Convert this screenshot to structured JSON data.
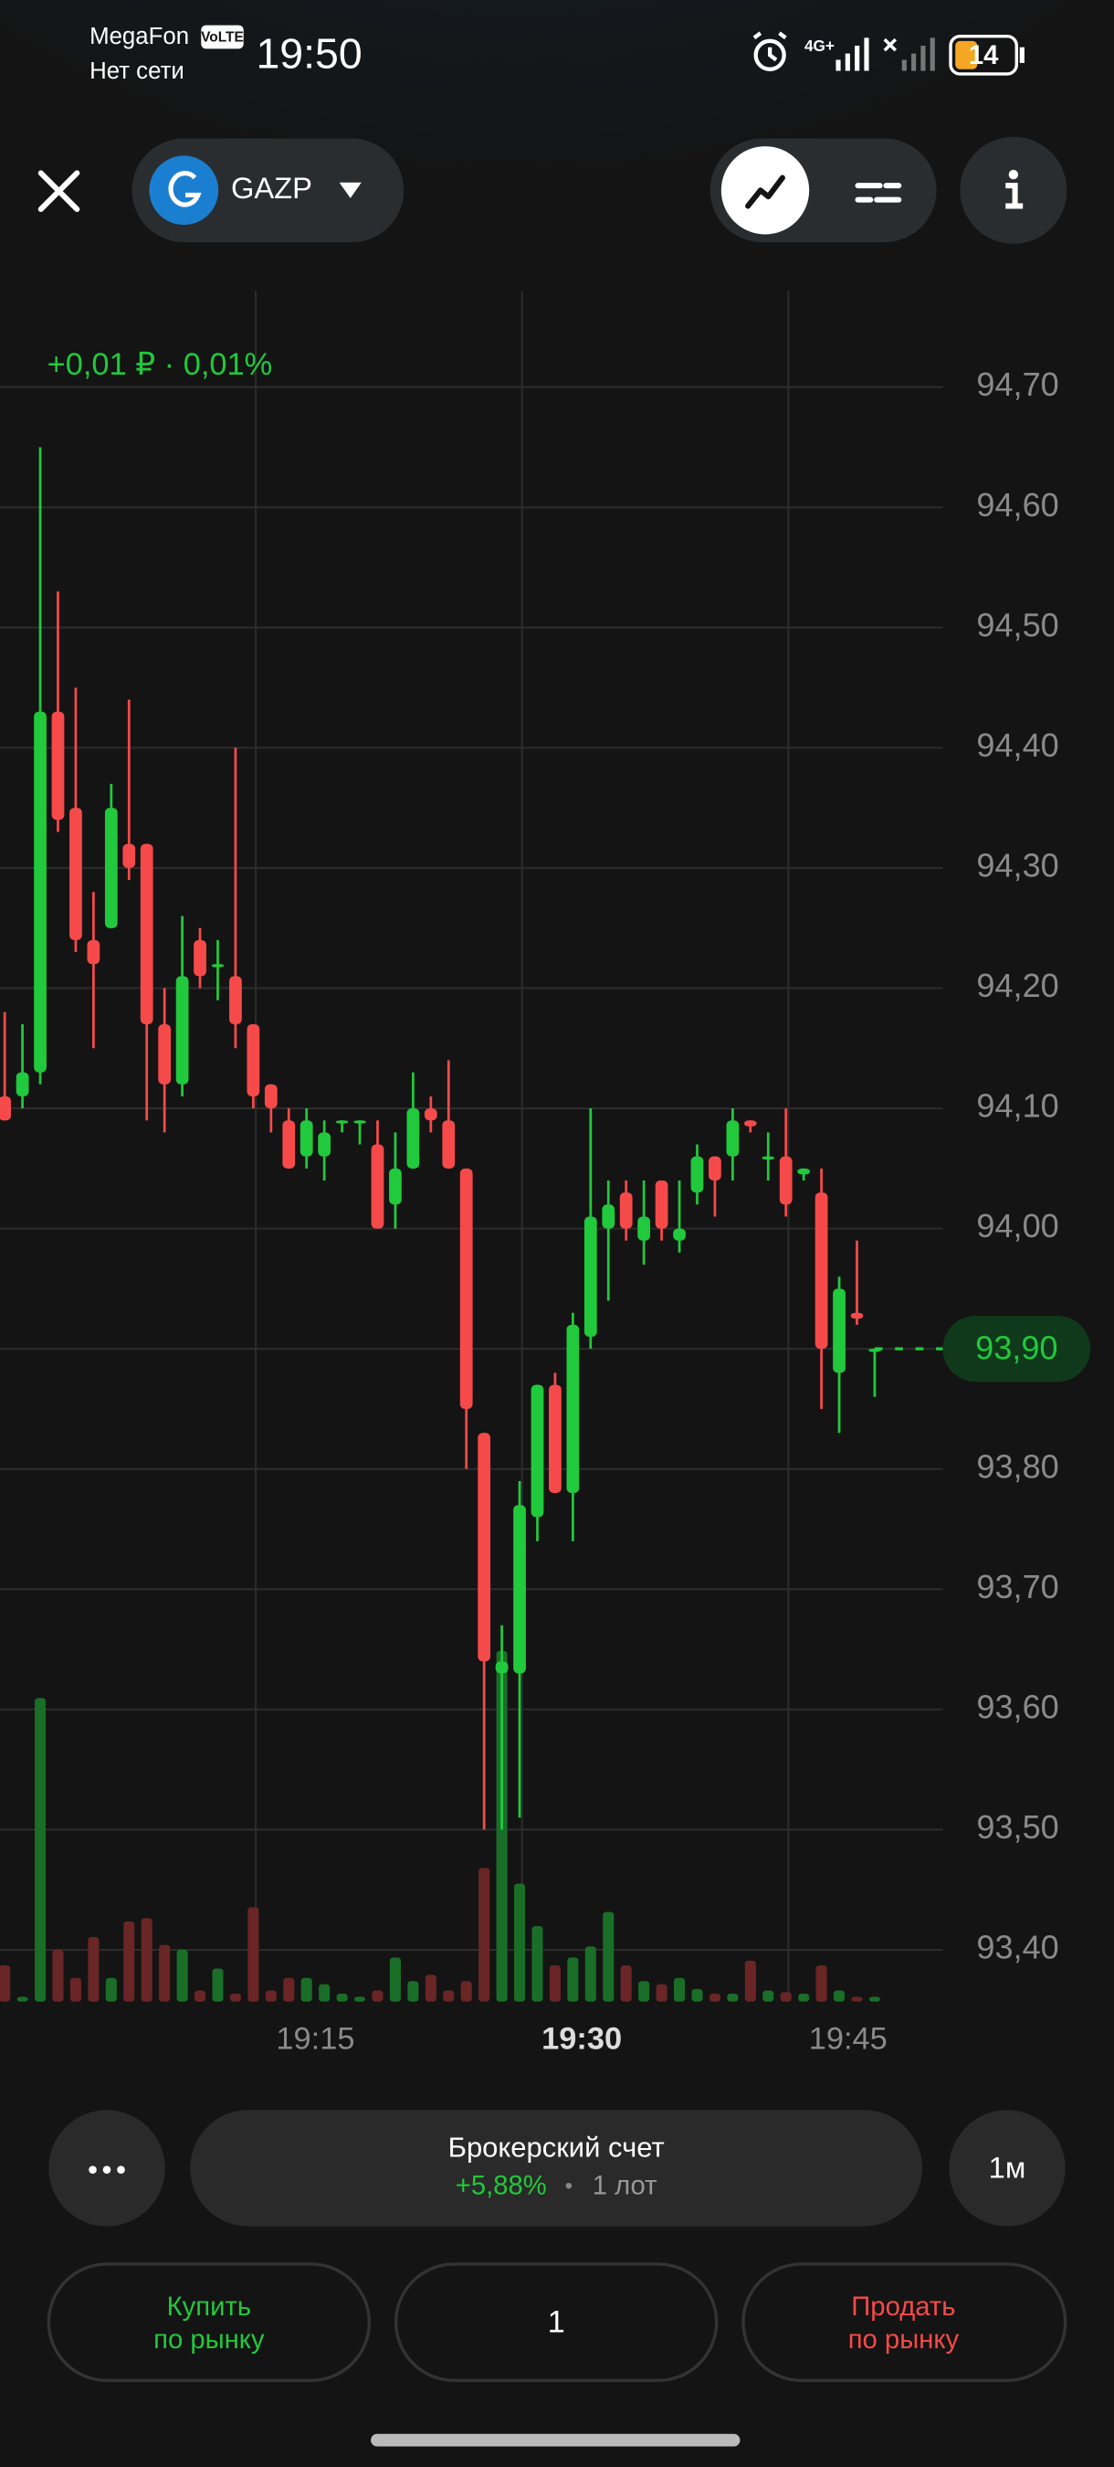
{
  "status_bar": {
    "carrier": "MegaFon",
    "volte": "VoLTE",
    "network": "Нет сети",
    "time": "19:50",
    "signal": "4G+",
    "battery": "14"
  },
  "header": {
    "ticker": "GAZP"
  },
  "chart_data": {
    "type": "candlestick",
    "change": "+0,01 ₽ · 0,01%",
    "categories": [
      null,
      null,
      null,
      null,
      null,
      null,
      null,
      null,
      null,
      null,
      null,
      null,
      null,
      null,
      null,
      null,
      null,
      "19:15",
      null,
      null,
      null,
      null,
      null,
      null,
      null,
      null,
      null,
      null,
      null,
      null,
      null,
      null,
      "19:30",
      null,
      null,
      null,
      null,
      null,
      null,
      null,
      null,
      null,
      null,
      null,
      null,
      null,
      null,
      "19:45",
      null,
      null
    ],
    "open": [
      94.11,
      94.11,
      94.13,
      94.43,
      94.35,
      94.24,
      94.25,
      94.32,
      94.32,
      94.17,
      94.12,
      94.24,
      94.22,
      94.21,
      94.17,
      94.12,
      94.09,
      94.06,
      94.06,
      94.09,
      94.09,
      94.07,
      94.02,
      94.05,
      94.1,
      94.09,
      94.05,
      93.83,
      93.63,
      93.63,
      93.76,
      93.87,
      93.78,
      93.91,
      94.0,
      94.03,
      93.99,
      94.04,
      93.99,
      94.03,
      94.06,
      94.06,
      94.09,
      94.06,
      94.06,
      94.045,
      94.03,
      93.88,
      93.93,
      93.9
    ],
    "high": [
      94.18,
      94.17,
      94.65,
      94.53,
      94.45,
      94.28,
      94.37,
      94.44,
      94.32,
      94.2,
      94.26,
      94.25,
      94.24,
      94.4,
      94.17,
      94.12,
      94.1,
      94.1,
      94.09,
      94.09,
      94.09,
      94.09,
      94.08,
      94.13,
      94.11,
      94.14,
      94.05,
      93.83,
      93.67,
      93.79,
      93.87,
      93.88,
      93.93,
      94.1,
      94.04,
      94.04,
      94.04,
      94.04,
      94.04,
      94.07,
      94.06,
      94.1,
      94.09,
      94.08,
      94.1,
      94.05,
      94.05,
      93.96,
      93.99,
      93.9
    ],
    "low": [
      94.09,
      94.1,
      94.12,
      94.33,
      94.23,
      94.15,
      94.25,
      94.29,
      94.09,
      94.08,
      94.11,
      94.2,
      94.19,
      94.15,
      94.1,
      94.08,
      94.05,
      94.05,
      94.04,
      94.08,
      94.07,
      94.0,
      94.0,
      94.05,
      94.08,
      94.05,
      93.8,
      93.5,
      93.5,
      93.51,
      93.74,
      93.78,
      93.74,
      93.9,
      93.94,
      93.99,
      93.97,
      93.99,
      93.98,
      94.02,
      94.01,
      94.04,
      94.08,
      94.04,
      94.01,
      94.04,
      93.85,
      93.83,
      93.92,
      93.86
    ],
    "close": [
      94.09,
      94.13,
      94.43,
      94.34,
      94.24,
      94.22,
      94.35,
      94.3,
      94.17,
      94.12,
      94.21,
      94.21,
      94.22,
      94.17,
      94.11,
      94.1,
      94.05,
      94.09,
      94.08,
      94.09,
      94.09,
      94.0,
      94.05,
      94.1,
      94.09,
      94.05,
      93.85,
      93.64,
      93.64,
      93.77,
      93.87,
      93.78,
      93.92,
      94.01,
      94.02,
      94.0,
      94.01,
      94.0,
      94.0,
      94.06,
      94.04,
      94.09,
      94.085,
      94.06,
      94.02,
      94.05,
      93.9,
      93.95,
      93.925,
      93.9
    ],
    "volume": [
      23,
      3,
      193,
      33,
      15,
      41,
      15,
      51,
      53,
      36,
      33,
      7,
      21,
      5,
      60,
      7,
      15,
      15,
      11,
      5,
      3,
      7,
      28,
      13,
      17,
      7,
      13,
      85,
      223,
      75,
      48,
      23,
      28,
      35,
      57,
      23,
      13,
      11,
      15,
      8,
      5,
      5,
      26,
      7,
      6,
      5,
      23,
      7,
      3,
      3
    ],
    "up_color": "#21c93c",
    "down_color": "#f64a4a",
    "up_volume_color": "#1a6e28",
    "down_volume_color": "#6a2626",
    "ylim": [
      93.357,
      94.78
    ],
    "yticks": [
      {
        "value": 94.7,
        "label": "94,70"
      },
      {
        "value": 94.6,
        "label": "94,60"
      },
      {
        "value": 94.5,
        "label": "94,50"
      },
      {
        "value": 94.4,
        "label": "94,40"
      },
      {
        "value": 94.3,
        "label": "94,30"
      },
      {
        "value": 94.2,
        "label": "94,20"
      },
      {
        "value": 94.1,
        "label": "94,10"
      },
      {
        "value": 94.0,
        "label": "94,00"
      },
      {
        "value": 93.9,
        "label": "93,90"
      },
      {
        "value": 93.8,
        "label": "93,80"
      },
      {
        "value": 93.7,
        "label": "93,70"
      },
      {
        "value": 93.6,
        "label": "93,60"
      },
      {
        "value": 93.5,
        "label": "93,50"
      },
      {
        "value": 93.4,
        "label": "93,40"
      }
    ],
    "grid": true,
    "last_price": {
      "value": 93.9,
      "label": "93,90"
    }
  },
  "account": {
    "name": "Брокерский счет",
    "return": "+5,88%",
    "separator": "•",
    "lots": "1 лот",
    "interval": "1м"
  },
  "order": {
    "buy": [
      "Купить",
      "по рынку"
    ],
    "quantity": "1",
    "sell": [
      "Продать",
      "по рынку"
    ]
  }
}
